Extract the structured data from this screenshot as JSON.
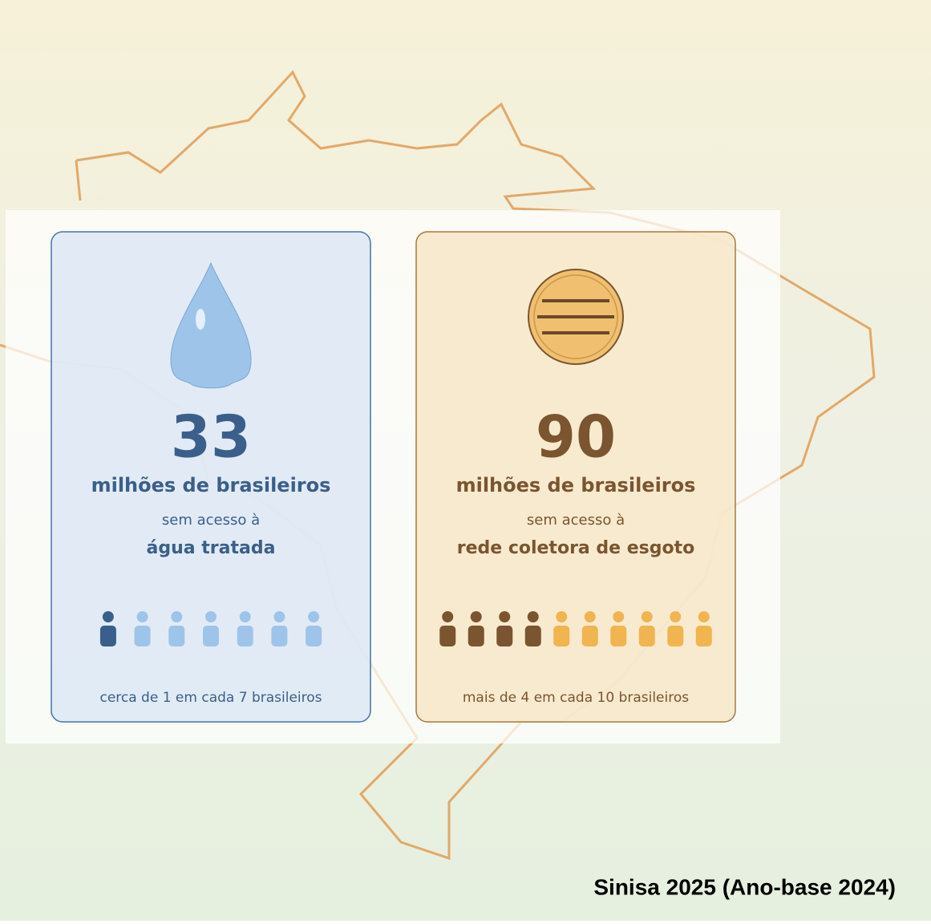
{
  "cards": [
    {
      "number": "33",
      "unit": "milhões de brasileiros",
      "prefix": "sem acesso à",
      "subject": "água tratada",
      "footnote": "cerca de 1 em cada 7 brasileiros",
      "people": {
        "highlighted": 1,
        "total": 7
      }
    },
    {
      "number": "90",
      "unit": "milhões de brasileiros",
      "prefix": "sem acesso à",
      "subject": "rede coletora de esgoto",
      "footnote": "mais de 4 em cada 10 brasileiros",
      "people": {
        "highlighted": 4,
        "total": 10
      }
    }
  ],
  "source": "Sinisa 2025 (Ano-base 2024)"
}
